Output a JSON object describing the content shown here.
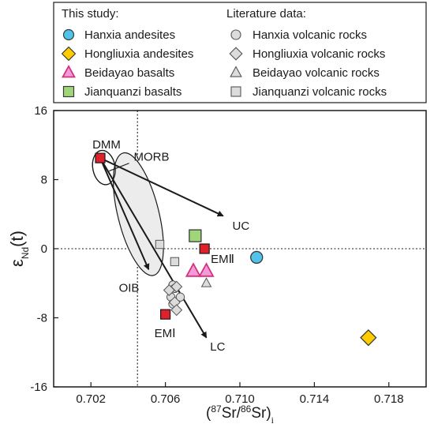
{
  "chart_data": {
    "type": "scatter",
    "xlabel_parts": [
      "(",
      "87",
      "Sr/",
      "86",
      "Sr)",
      "i"
    ],
    "ylabel_parts": [
      "ε",
      "Nd",
      "(t)"
    ],
    "xlim": [
      0.7,
      0.72
    ],
    "ylim": [
      -16,
      16
    ],
    "x_ticks": [
      0.702,
      0.706,
      0.71,
      0.714,
      0.718
    ],
    "x_tick_labels": [
      "0.702",
      "0.706",
      "0.710",
      "0.714",
      "0.718"
    ],
    "y_ticks": [
      -16,
      -8,
      0,
      8,
      16
    ],
    "y_tick_labels": [
      "-16",
      "-8",
      "0",
      "8",
      "16"
    ],
    "reference_lines": {
      "x": 0.7045,
      "y": 0
    },
    "legend": {
      "position": "top",
      "group_titles": [
        "This study:",
        "Literature data:"
      ],
      "this_study": [
        {
          "label": "Hanxia andesites",
          "marker": "circle",
          "fill": "#4fc3e8"
        },
        {
          "label": "Hongliuxia andesites",
          "marker": "diamond",
          "fill": "#ffcc00"
        },
        {
          "label": "Beidayao basalts",
          "marker": "triangle",
          "fill": "#f39ad8"
        },
        {
          "label": "Jianquanzi basalts",
          "marker": "square",
          "fill": "#9fd67a"
        }
      ],
      "literature": [
        {
          "label": "Hanxia volcanic rocks",
          "marker": "circle",
          "fill": "#dcdcdc"
        },
        {
          "label": "Hongliuxia volcanic rocks",
          "marker": "diamond",
          "fill": "#dcdcdc"
        },
        {
          "label": "Beidayao volcanic rocks",
          "marker": "triangle",
          "fill": "#dcdcdc"
        },
        {
          "label": "Jianquanzi volcanic rocks",
          "marker": "square",
          "fill": "#dcdcdc"
        }
      ]
    },
    "series": [
      {
        "name": "Hanxia andesites",
        "marker": "circle",
        "fill": "#4fc3e8",
        "points": [
          [
            0.7109,
            -1.0
          ]
        ]
      },
      {
        "name": "Hongliuxia andesites",
        "marker": "diamond",
        "fill": "#ffcc00",
        "points": [
          [
            0.7169,
            -10.3
          ]
        ]
      },
      {
        "name": "Beidayao basalts",
        "marker": "triangle",
        "fill": "#f39ad8",
        "points": [
          [
            0.7075,
            -2.6
          ],
          [
            0.7082,
            -2.6
          ]
        ]
      },
      {
        "name": "Jianquanzi basalts",
        "marker": "square",
        "fill": "#9fd67a",
        "points": [
          [
            0.7076,
            1.5
          ]
        ]
      },
      {
        "name": "Hanxia volcanic rocks",
        "marker": "circle",
        "fill": "#dcdcdc",
        "points": [
          [
            0.7064,
            -4.2
          ],
          [
            0.7065,
            -4.6
          ],
          [
            0.7063,
            -5.6
          ],
          [
            0.7068,
            -5.6
          ],
          [
            0.7064,
            -6.4
          ]
        ]
      },
      {
        "name": "Hongliuxia volcanic rocks",
        "marker": "diamond",
        "fill": "#dcdcdc",
        "points": [
          [
            0.7066,
            -4.4
          ],
          [
            0.7062,
            -4.8
          ],
          [
            0.7065,
            -6.2
          ],
          [
            0.7066,
            -7.1
          ]
        ]
      },
      {
        "name": "Beidayao volcanic rocks",
        "marker": "triangle",
        "fill": "#dcdcdc",
        "points": [
          [
            0.7082,
            -4.0
          ]
        ]
      },
      {
        "name": "Jianquanzi volcanic rocks",
        "marker": "square",
        "fill": "#dcdcdc",
        "points": [
          [
            0.7057,
            0.5
          ],
          [
            0.7065,
            -1.5
          ]
        ]
      }
    ],
    "end_members": [
      {
        "label": "DMM",
        "x": 0.7025,
        "y": 10.5,
        "fill": "#e0202a"
      },
      {
        "label": "EMⅡ",
        "x": 0.7081,
        "y": 0.0,
        "fill": "#e0202a"
      },
      {
        "label": "EMⅠ",
        "x": 0.706,
        "y": -7.6,
        "fill": "#e0202a"
      }
    ],
    "arrows": [
      {
        "label": "UC",
        "from": [
          0.7025,
          10.5
        ],
        "to": [
          0.7091,
          3.8
        ]
      },
      {
        "label": "LC",
        "from": [
          0.7025,
          10.5
        ],
        "to": [
          0.7082,
          -10.3
        ]
      },
      {
        "label": "OIB",
        "from": [
          0.7025,
          10.5
        ],
        "to": [
          0.7051,
          -2.4
        ]
      }
    ],
    "fields": [
      {
        "label": "MORB",
        "cx": 0.7027,
        "cy": 9.4,
        "rx": 0.0006,
        "ry": 2.0,
        "angle": -10
      },
      {
        "label": "OIB",
        "cx": 0.70455,
        "cy": 4.0,
        "rx": 0.0011,
        "ry": 7.3,
        "angle": -14
      }
    ],
    "annotations": [
      {
        "text": "MORB",
        "x": 0.7043,
        "y": 10.2
      },
      {
        "text": "OIB",
        "x": 0.7035,
        "y": -5.0
      },
      {
        "text": "UC",
        "x": 0.7096,
        "y": 2.2
      },
      {
        "text": "LC",
        "x": 0.7084,
        "y": -11.8
      }
    ]
  }
}
